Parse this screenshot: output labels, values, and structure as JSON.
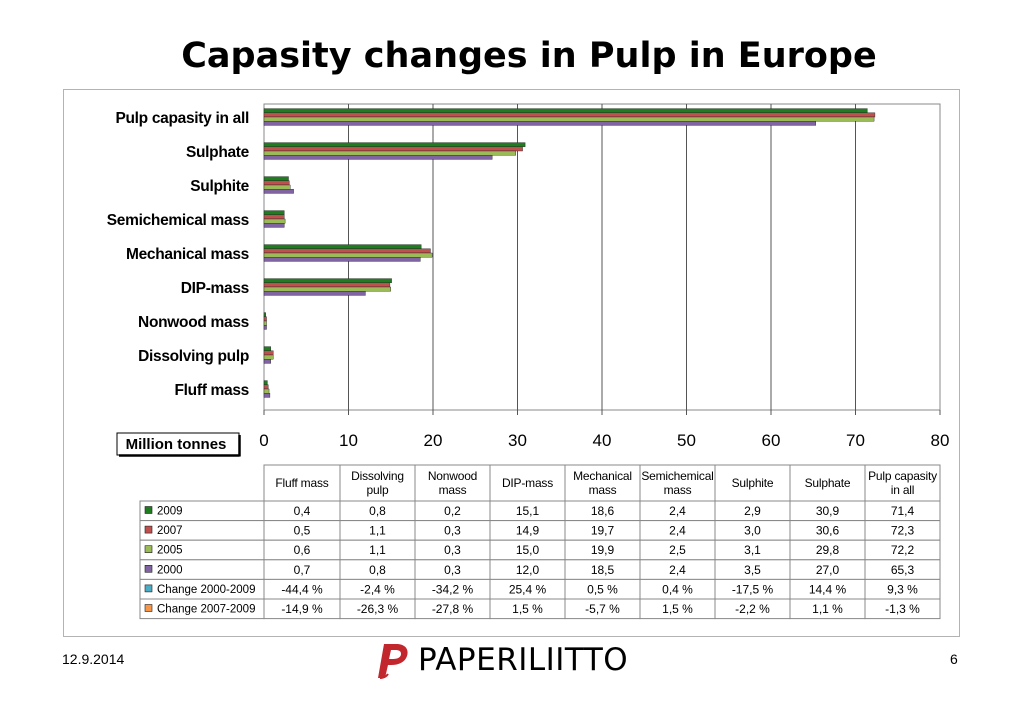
{
  "page": {
    "title": "Capasity changes in Pulp in Europe",
    "date": "12.9.2014",
    "page_number": "6",
    "logo_text": "PAPERILIITTO"
  },
  "chart_data": {
    "type": "bar",
    "orientation": "horizontal",
    "categories": [
      "Fluff mass",
      "Dissolving pulp",
      "Nonwood mass",
      "DIP-mass",
      "Mechanical mass",
      "Semichemical mass",
      "Sulphite",
      "Sulphate",
      "Pulp capasity in all"
    ],
    "series": [
      {
        "name": "2009",
        "color": "#1e7d1e",
        "values": [
          0.4,
          0.8,
          0.2,
          15.1,
          18.6,
          2.4,
          2.9,
          30.9,
          71.4
        ]
      },
      {
        "name": "2007",
        "color": "#c0504d",
        "values": [
          0.5,
          1.1,
          0.3,
          14.9,
          19.7,
          2.4,
          3.0,
          30.6,
          72.3
        ]
      },
      {
        "name": "2005",
        "color": "#9bbb59",
        "values": [
          0.6,
          1.1,
          0.3,
          15.0,
          19.9,
          2.5,
          3.1,
          29.8,
          72.2
        ]
      },
      {
        "name": "2000",
        "color": "#8064a2",
        "values": [
          0.7,
          0.8,
          0.3,
          12.0,
          18.5,
          2.4,
          3.5,
          27.0,
          65.3
        ]
      }
    ],
    "xlabel": "Million tonnes",
    "xlim": [
      0,
      80
    ],
    "xticks": [
      "0",
      "10",
      "20",
      "30",
      "40",
      "50",
      "60",
      "70",
      "80"
    ],
    "grid": "vertical",
    "table": {
      "headers": [
        "Fluff mass",
        "Dissolving pulp",
        "Nonwood mass",
        "DIP-mass",
        "Mechanical mass",
        "Semichemical mass",
        "Sulphite",
        "Sulphate",
        "Pulp capasity in all"
      ],
      "rows": [
        {
          "label": "2009",
          "color": "#1e7d1e",
          "cells": [
            "0,4",
            "0,8",
            "0,2",
            "15,1",
            "18,6",
            "2,4",
            "2,9",
            "30,9",
            "71,4"
          ]
        },
        {
          "label": "2007",
          "color": "#c0504d",
          "cells": [
            "0,5",
            "1,1",
            "0,3",
            "14,9",
            "19,7",
            "2,4",
            "3,0",
            "30,6",
            "72,3"
          ]
        },
        {
          "label": "2005",
          "color": "#9bbb59",
          "cells": [
            "0,6",
            "1,1",
            "0,3",
            "15,0",
            "19,9",
            "2,5",
            "3,1",
            "29,8",
            "72,2"
          ]
        },
        {
          "label": "2000",
          "color": "#8064a2",
          "cells": [
            "0,7",
            "0,8",
            "0,3",
            "12,0",
            "18,5",
            "2,4",
            "3,5",
            "27,0",
            "65,3"
          ]
        },
        {
          "label": "Change 2000-2009",
          "color": "#4bacc6",
          "cells": [
            "-44,4 %",
            "-2,4 %",
            "-34,2 %",
            "25,4 %",
            "0,5 %",
            "0,4 %",
            "-17,5 %",
            "14,4 %",
            "9,3 %"
          ]
        },
        {
          "label": "Change 2007-2009",
          "color": "#f79646",
          "cells": [
            "-14,9 %",
            "-26,3 %",
            "-27,8 %",
            "1,5 %",
            "-5,7 %",
            "1,5 %",
            "-2,2 %",
            "1,1 %",
            "-1,3 %"
          ]
        }
      ]
    }
  }
}
